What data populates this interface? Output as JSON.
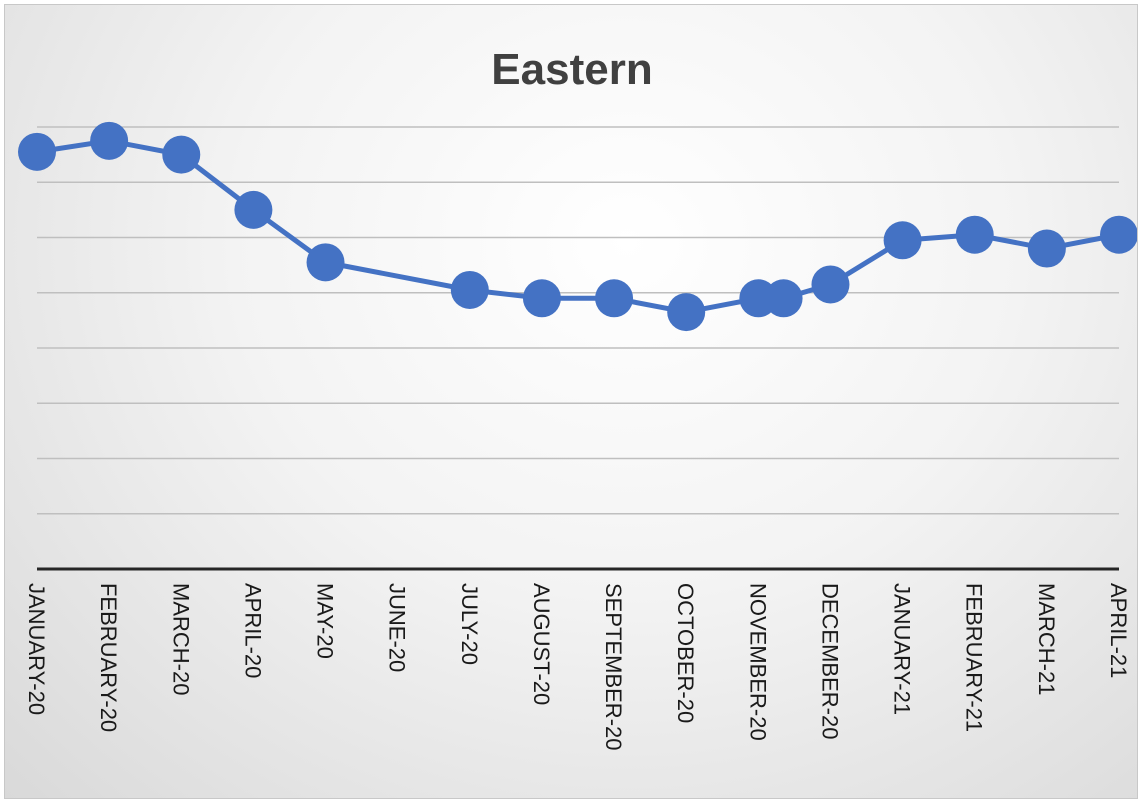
{
  "chart_data": {
    "type": "line",
    "title": "Eastern",
    "xlabel": "",
    "ylabel": "",
    "categories": [
      "JANUARY-20",
      "FEBRUARY-20",
      "MARCH-20",
      "APRIL-20",
      "MAY-20",
      "JUNE-20",
      "JULY-20",
      "AUGUST-20",
      "SEPTEMBER-20",
      "OCTOBER-20",
      "NOVEMBER-20",
      "DECEMBER-20",
      "JANUARY-21",
      "FEBRUARY-21",
      "MARCH-21",
      "APRIL-21"
    ],
    "points": [
      {
        "x": 0,
        "y": 7.55
      },
      {
        "x": 1,
        "y": 7.75
      },
      {
        "x": 2,
        "y": 7.5
      },
      {
        "x": 3,
        "y": 6.5
      },
      {
        "x": 4,
        "y": 5.55
      },
      {
        "x": 6,
        "y": 5.05
      },
      {
        "x": 7,
        "y": 4.9
      },
      {
        "x": 8,
        "y": 4.9
      },
      {
        "x": 9,
        "y": 4.65
      },
      {
        "x": 10,
        "y": 4.9
      },
      {
        "x": 10.35,
        "y": 4.9
      },
      {
        "x": 11,
        "y": 5.15
      },
      {
        "x": 12,
        "y": 5.95
      },
      {
        "x": 13,
        "y": 6.05
      },
      {
        "x": 14,
        "y": 5.8
      },
      {
        "x": 15,
        "y": 6.05
      }
    ],
    "ylim": [
      0,
      8
    ],
    "grid": true,
    "legend": "none",
    "series_color": "#4472c4",
    "axis_color": "#262626",
    "grid_color": "#bfbfbf"
  }
}
